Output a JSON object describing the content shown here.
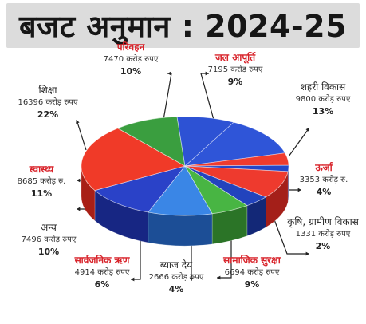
{
  "title": "बजट अनुमान : 2024-25",
  "chart_data": {
    "type": "pie",
    "title": "बजट अनुमान : 2024-25",
    "segments": [
      {
        "name": "शहरी विकास",
        "amount": "9800 करोड़ रुपए",
        "percent_label": "13%",
        "value": 13,
        "color": "#2a44c8",
        "top_color": "#2f55d8",
        "side_color": "#1a2e8a",
        "name_red": false
      },
      {
        "name": "ऊर्जा",
        "amount": "3353 करोड़ रु.",
        "percent_label": "4%",
        "value": 4,
        "color": "#e8332b",
        "top_color": "#ef3b2e",
        "side_color": "#a51f18",
        "name_red": true
      },
      {
        "name": "कृषि, ग्रामीण विकास",
        "amount": "1331 करोड़ रुपए",
        "percent_label": "2%",
        "value": 2,
        "color": "#1e3bb8",
        "top_color": "#2446c8",
        "side_color": "#142880",
        "name_red": false
      },
      {
        "name": "सामाजिक सुरक्षा",
        "amount": "6694 करोड़ रुपए",
        "percent_label": "9%",
        "value": 9,
        "color": "#e62f2a",
        "top_color": "#ee3a2e",
        "side_color": "#a41f19",
        "name_red": true
      },
      {
        "name": "ब्याज देय",
        "amount": "2666 करोड़ रुपए",
        "percent_label": "4%",
        "value": 4,
        "color": "#1b3aa8",
        "top_color": "#2243bd",
        "side_color": "#132877",
        "name_red": false
      },
      {
        "name": "सार्वजनिक ऋण",
        "amount": "4914 करोड़ रुपए",
        "percent_label": "6%",
        "value": 6,
        "color": "#3ea63a",
        "top_color": "#48b543",
        "side_color": "#2b7427",
        "name_red": true
      },
      {
        "name": "अन्य",
        "amount": "7496 करोड़ रुपए",
        "percent_label": "10%",
        "value": 10,
        "color": "#2a6fd0",
        "top_color": "#3a86e6",
        "side_color": "#1c4e96",
        "name_red": false
      },
      {
        "name": "स्वास्थ्य",
        "amount": "8685 करोड़ रु.",
        "percent_label": "11%",
        "value": 11,
        "color": "#2338b8",
        "top_color": "#2a42c8",
        "side_color": "#172683",
        "name_red": true
      },
      {
        "name": "शिक्षा",
        "amount": "16396 करोड़ रुपए",
        "percent_label": "22%",
        "value": 22,
        "color": "#ea2f22",
        "top_color": "#f03a28",
        "side_color": "#a81f16",
        "name_red": false
      },
      {
        "name": "परिवहन",
        "amount": "7470 करोड़ रुपए",
        "percent_label": "10%",
        "value": 10,
        "color": "#2f8d3a",
        "top_color": "#3a9e3f",
        "side_color": "#22642a",
        "name_red": true
      },
      {
        "name": "जल आपूर्ति",
        "amount": "7195 करोड़ रुपए",
        "percent_label": "9%",
        "value": 9,
        "color": "#2546c6",
        "top_color": "#2d52d4",
        "side_color": "#183087",
        "name_red": true
      }
    ]
  }
}
